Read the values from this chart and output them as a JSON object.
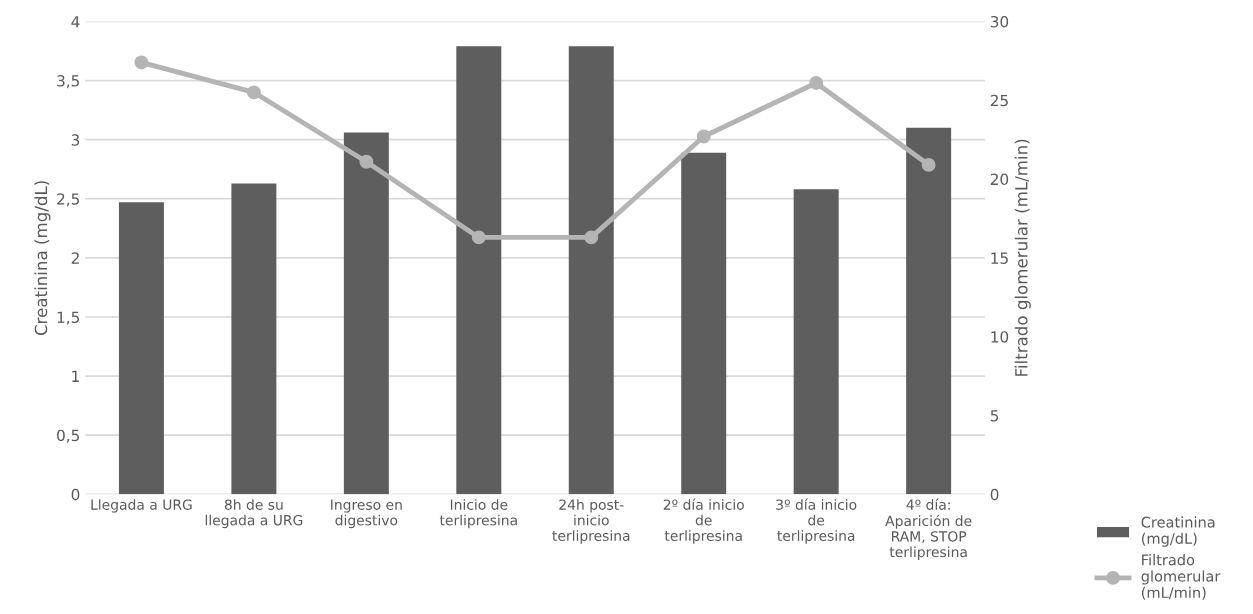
{
  "chart_data": {
    "type": "bar",
    "categories": [
      "Llegada a URG",
      "8h de su llegada a URG",
      "Ingreso en digestivo",
      "Inicio de terlipresina",
      "24h post-inicio terlipresina",
      "2º día inicio de terlipresina",
      "3º día inicio de terlipresina",
      "4º día: Aparición de RAM, STOP terlipresina"
    ],
    "series": [
      {
        "name": "Creatinina (mg/dL)",
        "color": "#5e5e5e",
        "values": [
          2.47,
          2.63,
          3.06,
          3.79,
          3.79,
          2.89,
          2.58,
          3.1
        ]
      },
      {
        "name": "Filtrado glomerular (mL/min)",
        "type": "line",
        "axis": "y2",
        "color": "#b4b4b4",
        "marker": "circle",
        "values": [
          27.4,
          25.5,
          21.1,
          16.3,
          16.3,
          22.7,
          26.1,
          20.9
        ]
      }
    ],
    "ylabel": "Creatinina (mg/dL)",
    "y2label": "Filtrado glomerular (mL/min)",
    "ylim": [
      0,
      4
    ],
    "yticks": [
      {
        "value": 0,
        "label": "0"
      },
      {
        "value": 0.5,
        "label": "0,5"
      },
      {
        "value": 1,
        "label": "1"
      },
      {
        "value": 1.5,
        "label": "1,5"
      },
      {
        "value": 2,
        "label": "2"
      },
      {
        "value": 2.5,
        "label": "2,5"
      },
      {
        "value": 3,
        "label": "3"
      },
      {
        "value": 3.5,
        "label": "3,5"
      },
      {
        "value": 4,
        "label": "4"
      }
    ],
    "y2lim": [
      0,
      30
    ],
    "y2ticks": [
      0,
      5,
      10,
      15,
      20,
      25,
      30
    ],
    "grid": "y",
    "legend": "bottom right"
  }
}
